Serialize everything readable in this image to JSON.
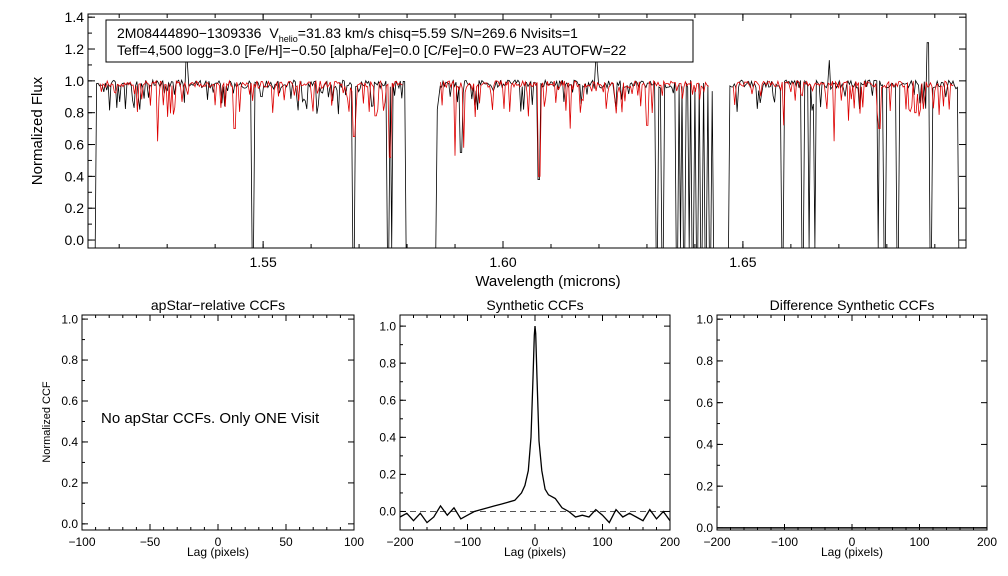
{
  "colors": {
    "observed": "#000000",
    "model": "#dd0000",
    "axis": "#000000",
    "zero_line": "#555555"
  },
  "chart_data": [
    {
      "type": "line",
      "panel": "spectrum",
      "title": "",
      "xlabel": "Wavelength (microns)",
      "ylabel": "Normalized Flux",
      "xlim": [
        1.5135,
        1.6965
      ],
      "ylim": [
        -0.05,
        1.42
      ],
      "x_ticks": [
        1.55,
        1.6,
        1.65
      ],
      "x_tick_labels": [
        "1.55",
        "1.60",
        "1.65"
      ],
      "y_ticks": [
        0,
        0.2,
        0.4,
        0.6,
        0.8,
        1.0,
        1.2,
        1.4
      ],
      "y_tick_labels": [
        "0.0",
        "0.2",
        "0.4",
        "0.6",
        "0.8",
        "1.0",
        "1.2",
        "1.4"
      ],
      "annotation": {
        "line1_star": "2M08444890−1309336",
        "line1_v": "V",
        "line1_sub": "helio",
        "line1_rest": "=31.83 km/s  chisq=5.59  S/N=269.6  Nvisits=1",
        "line2": "Teff=4,500 logg=3.0 [Fe/H]=−0.50 [alpha/Fe]=0.0 [C/Fe]=0.0 FW=23 AUTOFW=22"
      },
      "chips": [
        [
          1.515,
          1.58
        ],
        [
          1.586,
          1.644
        ],
        [
          1.647,
          1.695
        ]
      ],
      "series": [
        {
          "name": "observed",
          "continuum": 0.98,
          "features": [
            [
              1.515,
              -0.05
            ],
            [
              1.5478,
              -0.05
            ],
            [
              1.5688,
              -0.05
            ],
            [
              1.576,
              -0.05
            ],
            [
              1.5768,
              -0.05
            ],
            [
              1.58,
              -0.05
            ],
            [
              1.586,
              -0.05
            ],
            [
              1.5912,
              0.55
            ],
            [
              1.6075,
              0.38
            ],
            [
              1.632,
              -0.05
            ],
            [
              1.6332,
              -0.05
            ],
            [
              1.6362,
              -0.05
            ],
            [
              1.637,
              -0.05
            ],
            [
              1.6378,
              -0.05
            ],
            [
              1.6388,
              -0.05
            ],
            [
              1.6396,
              -0.05
            ],
            [
              1.6405,
              -0.05
            ],
            [
              1.6413,
              -0.05
            ],
            [
              1.6423,
              -0.05
            ],
            [
              1.6432,
              -0.05
            ],
            [
              1.644,
              -0.05
            ],
            [
              1.647,
              -0.05
            ],
            [
              1.6582,
              -0.05
            ],
            [
              1.6625,
              -0.05
            ],
            [
              1.6638,
              -0.05
            ],
            [
              1.665,
              -0.05
            ],
            [
              1.6782,
              -0.05
            ],
            [
              1.6795,
              -0.05
            ],
            [
              1.6822,
              -0.05
            ],
            [
              1.6892,
              -0.05
            ],
            [
              1.695,
              -0.05
            ]
          ],
          "spikes": [
            [
              1.534,
              1.12
            ],
            [
              1.6195,
              1.12
            ],
            [
              1.668,
              1.13
            ],
            [
              1.6885,
              1.24
            ]
          ]
        },
        {
          "name": "model",
          "continuum": 0.98,
          "features": [
            [
              1.528,
              0.62
            ],
            [
              1.544,
              0.7
            ],
            [
              1.569,
              0.65
            ],
            [
              1.5735,
              0.78
            ],
            [
              1.5765,
              0.52
            ],
            [
              1.59,
              0.53
            ],
            [
              1.5918,
              0.58
            ],
            [
              1.6075,
              0.4
            ],
            [
              1.614,
              0.7
            ],
            [
              1.63,
              0.72
            ],
            [
              1.6585,
              0.72
            ],
            [
              1.669,
              0.62
            ],
            [
              1.672,
              0.75
            ],
            [
              1.6785,
              0.7
            ],
            [
              1.686,
              0.8
            ],
            [
              1.693,
              0.82
            ]
          ]
        }
      ]
    },
    {
      "type": "line",
      "panel": "apstar-relative-ccf",
      "title": "apStar−relative CCFs",
      "xlabel": "Lag (pixels)",
      "ylabel": "Normalized CCF",
      "xlim": [
        -100,
        100
      ],
      "ylim": [
        -0.03,
        1.02
      ],
      "x_ticks": [
        -100,
        -50,
        0,
        50,
        100
      ],
      "x_tick_labels": [
        "−100",
        "−50",
        "0",
        "50",
        "100"
      ],
      "y_ticks": [
        0,
        0.2,
        0.4,
        0.6,
        0.8,
        1.0
      ],
      "y_tick_labels": [
        "0.0",
        "0.2",
        "0.4",
        "0.6",
        "0.8",
        "1.0"
      ],
      "message": "No apStar CCFs.  Only ONE Visit",
      "series": []
    },
    {
      "type": "line",
      "panel": "synthetic-ccf",
      "title": "Synthetic CCFs",
      "xlabel": "Lag (pixels)",
      "ylabel": "",
      "xlim": [
        -200,
        200
      ],
      "ylim": [
        -0.1,
        1.06
      ],
      "x_ticks": [
        -200,
        -100,
        0,
        100,
        200
      ],
      "x_tick_labels": [
        "−200",
        "−100",
        "0",
        "100",
        "200"
      ],
      "y_ticks": [
        0,
        0.2,
        0.4,
        0.6,
        0.8,
        1.0
      ],
      "y_tick_labels": [
        "0.0",
        "0.2",
        "0.4",
        "0.6",
        "0.8",
        "1.0"
      ],
      "zero_line": 0,
      "series": [
        {
          "name": "ccf",
          "x": [
            -200,
            -190,
            -180,
            -170,
            -160,
            -150,
            -140,
            -130,
            -120,
            -110,
            -100,
            -90,
            -80,
            -70,
            -60,
            -50,
            -40,
            -30,
            -20,
            -15,
            -10,
            -6,
            -3,
            -1,
            0,
            1,
            3,
            6,
            10,
            15,
            20,
            30,
            40,
            50,
            60,
            70,
            80,
            90,
            100,
            110,
            120,
            130,
            140,
            150,
            160,
            170,
            180,
            190,
            200
          ],
          "y": [
            -0.03,
            -0.01,
            -0.05,
            -0.01,
            -0.06,
            -0.03,
            0.03,
            -0.02,
            0.02,
            -0.04,
            -0.02,
            0.0,
            0.01,
            0.02,
            0.03,
            0.04,
            0.05,
            0.06,
            0.1,
            0.14,
            0.22,
            0.4,
            0.72,
            0.95,
            1.0,
            0.96,
            0.72,
            0.38,
            0.22,
            0.12,
            0.09,
            0.07,
            0.02,
            0.0,
            -0.03,
            -0.02,
            -0.03,
            0.01,
            -0.02,
            -0.06,
            0.01,
            -0.03,
            -0.01,
            -0.03,
            -0.05,
            0.01,
            -0.04,
            0.0,
            -0.05
          ]
        }
      ]
    },
    {
      "type": "line",
      "panel": "difference-synthetic-ccf",
      "title": "Difference Synthetic CCFs",
      "xlabel": "Lag (pixels)",
      "ylabel": "",
      "xlim": [
        -200,
        200
      ],
      "ylim": [
        -0.01,
        1.02
      ],
      "x_ticks": [
        -200,
        -100,
        0,
        100,
        200
      ],
      "x_tick_labels": [
        "−200",
        "−100",
        "0",
        "100",
        "200"
      ],
      "y_ticks": [
        0,
        0.2,
        0.4,
        0.6,
        0.8,
        1.0
      ],
      "y_tick_labels": [
        "0.0",
        "0.2",
        "0.4",
        "0.6",
        "0.8",
        "1.0"
      ],
      "series": [
        {
          "name": "difference",
          "x": [
            -200,
            200
          ],
          "y": [
            0.0,
            0.0
          ]
        }
      ]
    }
  ]
}
